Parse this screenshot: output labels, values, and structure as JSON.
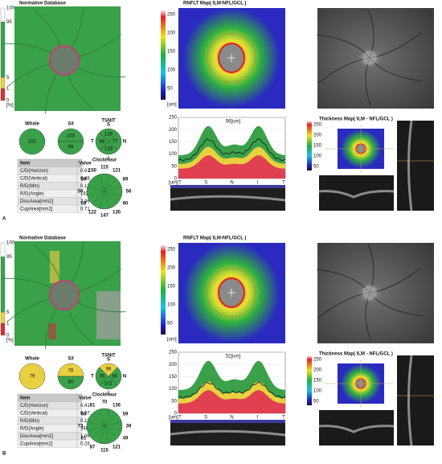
{
  "panels": [
    {
      "label": "A",
      "normative_title": "Normative Database",
      "normative_scale": [
        100,
        95,
        5,
        1,
        0,
        "[%]"
      ],
      "whole_label": "Whole",
      "whole_value": 101,
      "whole_color": "#3aa14a",
      "si_label": "S/I",
      "si_values": [
        103,
        99
      ],
      "si_colors": [
        "#3aa14a",
        "#3aa14a"
      ],
      "tsnit_label": "TSNIT",
      "tsnit": [
        {
          "letter": "S",
          "value": 129,
          "color": "#3aa14a"
        },
        {
          "letter": "T",
          "value": 68,
          "color": "#3aa14a"
        },
        {
          "letter": "N",
          "value": 77,
          "color": "#3aa14a"
        },
        {
          "letter": "I",
          "value": 133,
          "color": "#3aa14a"
        }
      ],
      "table": {
        "header": [
          "Item",
          "Value"
        ],
        "rows": [
          [
            "C/D(Horizon)",
            "0.61"
          ],
          [
            "C/D(Vertical)",
            "0.48"
          ],
          [
            "R/D(Min)",
            "0.12"
          ],
          [
            "R/D(Angle)",
            "183"
          ],
          [
            "DiscArea[mm2]",
            "2.36"
          ],
          [
            "CupArea[mm2]",
            "0.71"
          ]
        ]
      },
      "clockhour_label": "ClockHour",
      "clockhour": [
        115,
        121,
        89,
        56,
        90,
        130,
        147,
        122,
        58,
        50,
        88,
        150
      ],
      "rnflt_title": "RNFLT Map( ILM-NFL/GCL )",
      "map_scale": [
        250,
        200,
        150,
        100,
        50
      ],
      "map_unit": "[um]",
      "profile_label": "56[um]",
      "profile_yticks": [
        250,
        200,
        150,
        100,
        50,
        0
      ],
      "profile_unit": "[um]",
      "profile_xlabels": [
        "T",
        "S",
        "N",
        "I",
        "T"
      ],
      "thickness_title": "Thickness Map( ILM - NFL/GCL )",
      "thickness_scale": [
        250,
        200,
        150,
        100,
        50
      ]
    },
    {
      "label": "B",
      "normative_title": "Normative Database",
      "normative_scale": [
        100,
        95,
        5,
        1,
        0,
        "[%]"
      ],
      "whole_label": "Whole",
      "whole_value": 79,
      "whole_color": "#e8d040",
      "si_label": "S/I",
      "si_values": [
        78,
        80
      ],
      "si_colors": [
        "#e8d040",
        "#3aa14a"
      ],
      "tsnit_label": "TSNIT",
      "tsnit": [
        {
          "letter": "S",
          "value": 98,
          "color": "#e8d040"
        },
        {
          "letter": "T",
          "value": 55,
          "color": "#3aa14a"
        },
        {
          "letter": "N",
          "value": 65,
          "color": "#3aa14a"
        },
        {
          "letter": "I",
          "value": 101,
          "color": "#3aa14a"
        }
      ],
      "table": {
        "header": [
          "Item",
          "Value"
        ],
        "rows": [
          [
            "C/D(Horizon)",
            "0.41"
          ],
          [
            "C/D(Vertical)",
            "0.37"
          ],
          [
            "R/D(Min)",
            "0.13"
          ],
          [
            "R/D(Angle)",
            "346"
          ],
          [
            "DiscArea[mm2]",
            "1.06"
          ],
          [
            "CupArea[mm2]",
            "0.28"
          ]
        ]
      },
      "clockhour_label": "ClockHour",
      "clockhour": [
        70,
        136,
        59,
        39,
        49,
        121,
        115,
        87,
        61,
        73,
        60,
        81
      ],
      "rnflt_title": "RNFLT Map( ILM-NFL/GCL )",
      "map_scale": [
        250,
        200,
        150,
        100,
        50
      ],
      "map_unit": "[um]",
      "profile_label": "52[um]",
      "profile_yticks": [
        250,
        200,
        150,
        100,
        50,
        0
      ],
      "profile_unit": "[um]",
      "profile_xlabels": [
        "T",
        "S",
        "N",
        "I",
        "T"
      ],
      "thickness_title": "Thickness Map( ILM - NFL/GCL )",
      "thickness_scale": [
        250,
        200,
        150,
        100,
        50
      ]
    }
  ]
}
